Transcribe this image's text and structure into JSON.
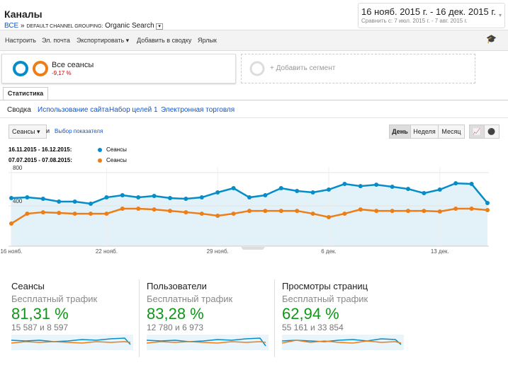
{
  "header": {
    "title": "Каналы",
    "breadcrumb_all": "ВСЕ",
    "breadcrumb_sep": "»",
    "grouping": "DEFAULT CHANNEL GROUPING:",
    "grouping_value": "Organic Search",
    "date_range": "16 нояб. 2015 г. - 16 дек. 2015 г.",
    "compare_label": "Сравнить с:",
    "compare_range": "7 июл. 2015 г. - 7 авг. 2015 г."
  },
  "toolbar": [
    "Настроить",
    "Эл. почта",
    "Экспортировать",
    "Добавить в сводку",
    "Ярлык"
  ],
  "segment": {
    "name": "Все сеансы",
    "change": "-9,17 %",
    "add": "+ Добавить сегмент"
  },
  "tab": "Статистика",
  "subtabs": [
    "Сводка",
    "Использование сайта",
    "Набор целей 1",
    "Электронная торговля"
  ],
  "controls": {
    "metric": "Сеансы",
    "vs": "и",
    "choose_metric": "Выбор показателя",
    "periods": [
      "День",
      "Неделя",
      "Месяц"
    ]
  },
  "chart_data": {
    "type": "line",
    "categories": [
      "16 нояб.",
      null,
      null,
      null,
      null,
      null,
      "22 нояб.",
      null,
      null,
      null,
      null,
      null,
      null,
      "29 нояб.",
      null,
      null,
      null,
      null,
      null,
      null,
      "6 дек.",
      null,
      null,
      null,
      null,
      null,
      null,
      "13 дек.",
      null,
      null,
      null
    ],
    "series": [
      {
        "name": "Сеансы",
        "period": "16.11.2015 - 16.12.2015:",
        "color": "#058dc7",
        "values": [
          494,
          502,
          485,
          451,
          451,
          426,
          502,
          528,
          502,
          519,
          494,
          485,
          502,
          562,
          613,
          502,
          528,
          613,
          579,
          562,
          596,
          664,
          638,
          655,
          630,
          604,
          553,
          596,
          672,
          664,
          434
        ]
      },
      {
        "name": "Сеансы",
        "period": "07.07.2015 - 07.08.2015:",
        "color": "#ed7e17",
        "values": [
          187,
          306,
          323,
          315,
          306,
          306,
          306,
          366,
          366,
          357,
          340,
          323,
          306,
          281,
          306,
          340,
          340,
          340,
          340,
          306,
          264,
          306,
          357,
          340,
          340,
          340,
          340,
          332,
          366,
          366,
          349
        ]
      }
    ],
    "ylim": [
      0,
      860
    ],
    "yticks": [
      400,
      800
    ],
    "grid": true
  },
  "scorecards": [
    {
      "title": "Сеансы",
      "subtitle": "Бесплатный трафик",
      "percent": "81,31 %",
      "counts": "15 587 и 8 597"
    },
    {
      "title": "Пользователи",
      "subtitle": "Бесплатный трафик",
      "percent": "83,28 %",
      "counts": "12 780 и 6 973"
    },
    {
      "title": "Просмотры страниц",
      "subtitle": "Бесплатный трафик",
      "percent": "62,94 %",
      "counts": "55 161 и 33 854"
    }
  ]
}
